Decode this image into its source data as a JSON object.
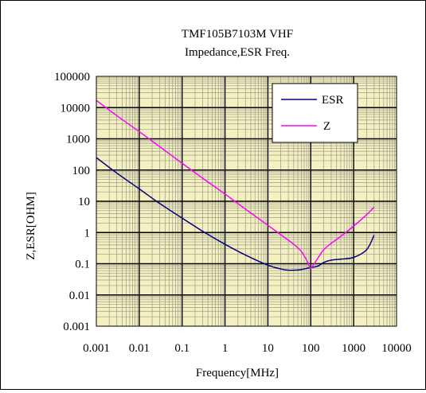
{
  "chart_data": {
    "type": "line",
    "title": "TMF105B7103M VHF",
    "subtitle": "Impedance,ESR  Freq.",
    "xlabel": "Frequency[MHz]",
    "ylabel": "Z,ESR[OHM]",
    "x_scale": "log",
    "y_scale": "log",
    "xlim": [
      0.001,
      10000
    ],
    "ylim": [
      0.001,
      100000
    ],
    "x_ticks": [
      "0.001",
      "0.01",
      "0.1",
      "1",
      "10",
      "100",
      "1000",
      "10000"
    ],
    "y_ticks": [
      "0.001",
      "0.01",
      "0.1",
      "1",
      "10",
      "100",
      "1000",
      "10000",
      "100000"
    ],
    "grid": true,
    "plot_background": "#f5f0c0",
    "legend_position": "top-right",
    "series": [
      {
        "name": "ESR",
        "color": "#000080",
        "x": [
          0.001,
          0.003,
          0.01,
          0.03,
          0.1,
          0.3,
          1,
          3,
          10,
          20,
          30,
          50,
          70,
          100,
          150,
          200,
          300,
          500,
          1000,
          2000,
          3000
        ],
        "y": [
          250,
          80,
          25,
          8.5,
          2.9,
          1.1,
          0.42,
          0.19,
          0.09,
          0.068,
          0.062,
          0.063,
          0.068,
          0.075,
          0.085,
          0.11,
          0.13,
          0.14,
          0.16,
          0.28,
          0.82
        ]
      },
      {
        "name": "Z",
        "color": "#ff00ff",
        "x": [
          0.001,
          0.003,
          0.01,
          0.03,
          0.1,
          0.3,
          1,
          3,
          10,
          20,
          40,
          60,
          80,
          90,
          100,
          120,
          150,
          200,
          300,
          500,
          1000,
          2000,
          3000
        ],
        "y": [
          17000,
          5500,
          1700,
          560,
          165,
          55,
          17,
          5.6,
          1.7,
          0.85,
          0.42,
          0.25,
          0.13,
          0.09,
          0.072,
          0.1,
          0.16,
          0.28,
          0.45,
          0.75,
          1.6,
          3.7,
          6.5
        ]
      }
    ]
  }
}
